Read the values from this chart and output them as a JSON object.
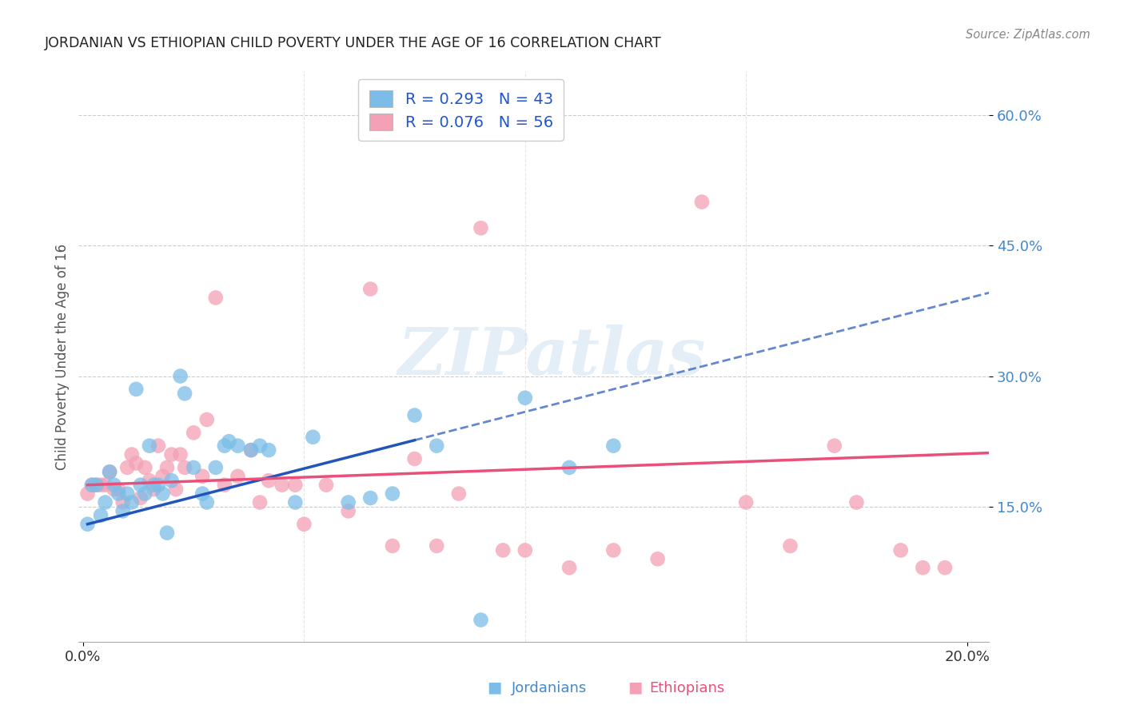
{
  "title": "JORDANIAN VS ETHIOPIAN CHILD POVERTY UNDER THE AGE OF 16 CORRELATION CHART",
  "source": "Source: ZipAtlas.com",
  "ylabel": "Child Poverty Under the Age of 16",
  "xlabel_jordanians": "Jordanians",
  "xlabel_ethiopians": "Ethiopians",
  "xlim": [
    -0.001,
    0.205
  ],
  "ylim": [
    -0.005,
    0.65
  ],
  "yticks": [
    0.15,
    0.3,
    0.45,
    0.6
  ],
  "ytick_labels": [
    "15.0%",
    "30.0%",
    "45.0%",
    "60.0%"
  ],
  "xticks": [
    0.0,
    0.2
  ],
  "xtick_labels": [
    "0.0%",
    "20.0%"
  ],
  "jordan_R": 0.293,
  "jordan_N": 43,
  "ethiopia_R": 0.076,
  "ethiopia_N": 56,
  "jordan_color": "#7BBDE8",
  "ethiopia_color": "#F4A0B5",
  "trend_jordan_color": "#2255BB",
  "trend_ethiopia_color": "#E8507A",
  "background_color": "#FFFFFF",
  "watermark": "ZIPatlas",
  "jordan_x": [
    0.001,
    0.002,
    0.003,
    0.004,
    0.005,
    0.006,
    0.007,
    0.008,
    0.009,
    0.01,
    0.011,
    0.012,
    0.013,
    0.014,
    0.015,
    0.016,
    0.017,
    0.018,
    0.019,
    0.02,
    0.022,
    0.023,
    0.025,
    0.027,
    0.028,
    0.03,
    0.032,
    0.033,
    0.035,
    0.038,
    0.04,
    0.042,
    0.048,
    0.052,
    0.06,
    0.065,
    0.07,
    0.075,
    0.08,
    0.09,
    0.1,
    0.11,
    0.12
  ],
  "jordan_y": [
    0.13,
    0.175,
    0.175,
    0.14,
    0.155,
    0.19,
    0.175,
    0.165,
    0.145,
    0.165,
    0.155,
    0.285,
    0.175,
    0.165,
    0.22,
    0.175,
    0.175,
    0.165,
    0.12,
    0.18,
    0.3,
    0.28,
    0.195,
    0.165,
    0.155,
    0.195,
    0.22,
    0.225,
    0.22,
    0.215,
    0.22,
    0.215,
    0.155,
    0.23,
    0.155,
    0.16,
    0.165,
    0.255,
    0.22,
    0.02,
    0.275,
    0.195,
    0.22
  ],
  "ethiopia_x": [
    0.001,
    0.002,
    0.003,
    0.004,
    0.005,
    0.006,
    0.007,
    0.008,
    0.009,
    0.01,
    0.011,
    0.012,
    0.013,
    0.014,
    0.015,
    0.016,
    0.017,
    0.018,
    0.019,
    0.02,
    0.021,
    0.022,
    0.023,
    0.025,
    0.027,
    0.028,
    0.03,
    0.032,
    0.035,
    0.038,
    0.04,
    0.042,
    0.045,
    0.048,
    0.05,
    0.055,
    0.06,
    0.065,
    0.07,
    0.075,
    0.08,
    0.085,
    0.09,
    0.095,
    0.1,
    0.11,
    0.12,
    0.13,
    0.14,
    0.15,
    0.16,
    0.17,
    0.175,
    0.185,
    0.19,
    0.195
  ],
  "ethiopia_y": [
    0.165,
    0.175,
    0.175,
    0.175,
    0.175,
    0.19,
    0.17,
    0.17,
    0.155,
    0.195,
    0.21,
    0.2,
    0.16,
    0.195,
    0.18,
    0.17,
    0.22,
    0.185,
    0.195,
    0.21,
    0.17,
    0.21,
    0.195,
    0.235,
    0.185,
    0.25,
    0.39,
    0.175,
    0.185,
    0.215,
    0.155,
    0.18,
    0.175,
    0.175,
    0.13,
    0.175,
    0.145,
    0.4,
    0.105,
    0.205,
    0.105,
    0.165,
    0.47,
    0.1,
    0.1,
    0.08,
    0.1,
    0.09,
    0.5,
    0.155,
    0.105,
    0.22,
    0.155,
    0.1,
    0.08,
    0.08
  ],
  "jordan_trend_x0": 0.001,
  "jordan_trend_y0": 0.13,
  "jordan_trend_x1": 0.12,
  "jordan_trend_y1": 0.285,
  "ethiopia_trend_x0": 0.001,
  "ethiopia_trend_y0": 0.175,
  "ethiopia_trend_x1": 0.195,
  "ethiopia_trend_y1": 0.21
}
